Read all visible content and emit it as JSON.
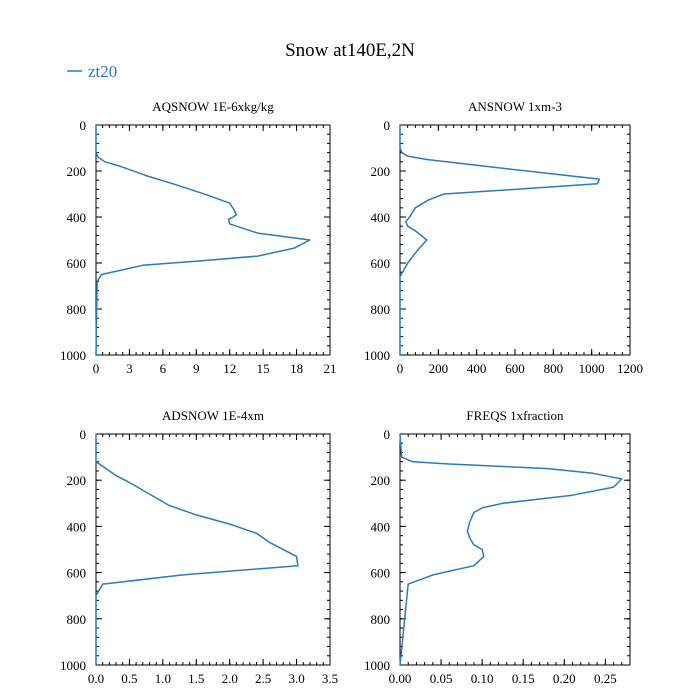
{
  "figure": {
    "title": "Snow at140E,2N",
    "legend": {
      "label": "zt20",
      "color": "#2b7bb9"
    }
  },
  "chart_data": [
    {
      "type": "line",
      "title": "AQSNOW  1E-6xkg/kg",
      "xlim": [
        0,
        21
      ],
      "ylim": [
        1000,
        0
      ],
      "xticks": [
        "0",
        "3",
        "6",
        "9",
        "12",
        "15",
        "18",
        "21"
      ],
      "yticks": [
        "0",
        "200",
        "400",
        "600",
        "800",
        "1000"
      ],
      "series": [
        {
          "name": "zt20",
          "x": [
            0,
            0,
            0.2,
            0.8,
            2.2,
            4.5,
            7.2,
            10.0,
            12.0,
            12.4,
            12.6,
            12.3,
            11.9,
            12.0,
            14.5,
            19.2,
            17.8,
            14.5,
            9.5,
            4.2,
            0.5,
            0.1,
            0
          ],
          "y": [
            0,
            120,
            140,
            160,
            180,
            220,
            260,
            305,
            340,
            370,
            390,
            400,
            410,
            430,
            470,
            500,
            535,
            570,
            590,
            610,
            650,
            680,
            1000
          ]
        }
      ]
    },
    {
      "type": "line",
      "title": "ANSNOW  1xm-3",
      "xlim": [
        0,
        1200
      ],
      "ylim": [
        1000,
        0
      ],
      "xticks": [
        "0",
        "200",
        "400",
        "600",
        "800",
        "1000",
        "1200"
      ],
      "yticks": [
        "0",
        "200",
        "400",
        "600",
        "800",
        "1000"
      ],
      "series": [
        {
          "name": "zt20",
          "x": [
            0,
            0,
            10,
            40,
            140,
            450,
            1040,
            1030,
            600,
            230,
            150,
            80,
            50,
            30,
            40,
            80,
            140,
            90,
            40,
            0,
            0
          ],
          "y": [
            0,
            100,
            120,
            135,
            150,
            180,
            235,
            255,
            280,
            300,
            325,
            360,
            400,
            420,
            440,
            460,
            500,
            545,
            600,
            660,
            1000
          ]
        }
      ]
    },
    {
      "type": "line",
      "title": "ADSNOW  1E-4xm",
      "xlim": [
        0,
        3.5
      ],
      "ylim": [
        1000,
        0
      ],
      "xticks": [
        "0.0",
        "0.5",
        "1.0",
        "1.5",
        "2.0",
        "2.5",
        "3.0",
        "3.5"
      ],
      "yticks": [
        "0",
        "200",
        "400",
        "600",
        "800",
        "1000"
      ],
      "series": [
        {
          "name": "zt20",
          "x": [
            0,
            0,
            0.1,
            0.3,
            0.5,
            0.8,
            1.1,
            1.5,
            2.0,
            2.4,
            2.6,
            3.0,
            3.02,
            1.3,
            0.1,
            0,
            0
          ],
          "y": [
            0,
            120,
            140,
            180,
            210,
            260,
            310,
            350,
            390,
            430,
            470,
            530,
            570,
            610,
            650,
            700,
            1000
          ]
        }
      ]
    },
    {
      "type": "line",
      "title": "FREQS  1xfraction",
      "xlim": [
        0,
        0.28
      ],
      "ylim": [
        1000,
        0
      ],
      "xticks": [
        "0.00",
        "0.05",
        "0.10",
        "0.15",
        "0.20",
        "0.25"
      ],
      "yticks": [
        "0",
        "200",
        "400",
        "600",
        "800",
        "1000"
      ],
      "series": [
        {
          "name": "zt20",
          "x": [
            0,
            0.002,
            0.015,
            0.06,
            0.18,
            0.235,
            0.27,
            0.26,
            0.21,
            0.125,
            0.1,
            0.09,
            0.085,
            0.082,
            0.085,
            0.09,
            0.1,
            0.102,
            0.09,
            0.04,
            0.01,
            0
          ],
          "y": [
            0,
            100,
            120,
            130,
            150,
            170,
            195,
            230,
            265,
            300,
            320,
            340,
            380,
            420,
            450,
            480,
            500,
            530,
            570,
            610,
            650,
            1000
          ]
        }
      ]
    }
  ]
}
